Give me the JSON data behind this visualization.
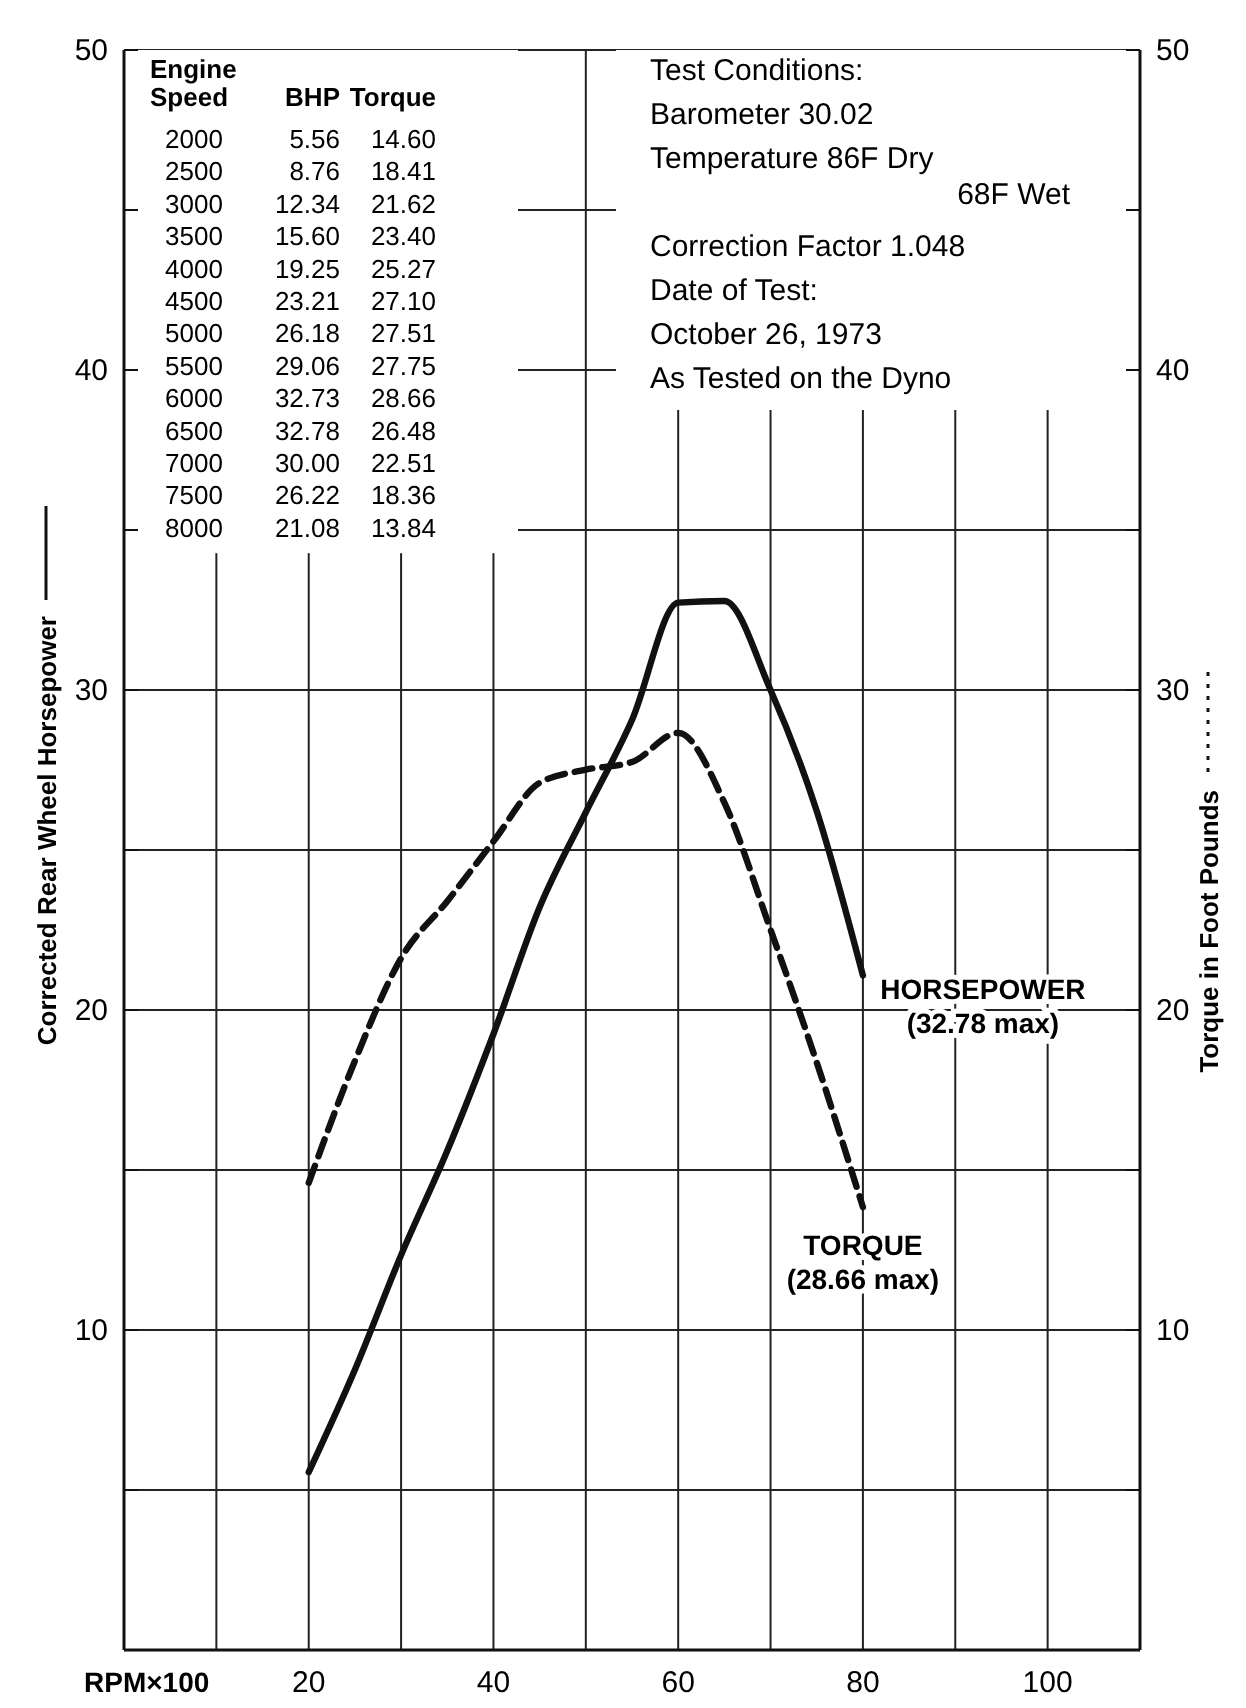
{
  "chart_data": {
    "type": "line",
    "xlabel": "RPM×100",
    "ylabel": "Corrected Rear Wheel Horsepower",
    "y2label": "Torque in Foot Pounds",
    "x": [
      20,
      25,
      30,
      35,
      40,
      45,
      50,
      55,
      60,
      65,
      70,
      75,
      80
    ],
    "series": [
      {
        "name": "HORSEPOWER",
        "color": "#111111",
        "line_style": "solid",
        "values": [
          5.56,
          8.76,
          12.34,
          15.6,
          19.25,
          23.21,
          26.18,
          29.06,
          32.73,
          32.78,
          30.0,
          26.22,
          21.08
        ]
      },
      {
        "name": "TORQUE",
        "color": "#111111",
        "line_style": "dashed",
        "values": [
          14.6,
          18.41,
          21.62,
          23.4,
          25.27,
          27.1,
          27.51,
          27.75,
          28.66,
          26.48,
          22.51,
          18.36,
          13.84
        ]
      }
    ],
    "xlim": [
      0,
      110
    ],
    "xticks": [
      {
        "value": 10,
        "label": null
      },
      20,
      {
        "value": 30,
        "label": null
      },
      40,
      {
        "value": 50,
        "label": null
      },
      60,
      {
        "value": 70,
        "label": null
      },
      80,
      {
        "value": 90,
        "label": null
      },
      100
    ],
    "ylim": [
      0,
      50
    ],
    "yticks": [
      {
        "value": 5,
        "label": null
      },
      10,
      {
        "value": 15,
        "label": null
      },
      20,
      {
        "value": 25,
        "label": null
      },
      30,
      {
        "value": 35,
        "label": null
      },
      40,
      {
        "value": 45,
        "label": null
      },
      50
    ],
    "y2lim": [
      0,
      50
    ],
    "y2ticks": [
      {
        "value": 5,
        "label": null
      },
      10,
      {
        "value": 15,
        "label": null
      },
      20,
      {
        "value": 25,
        "label": null
      },
      30,
      {
        "value": 35,
        "label": null
      },
      40,
      {
        "value": 45,
        "label": null
      },
      50
    ],
    "grid": true,
    "marker": "none",
    "annotations": [
      "Engine Speed",
      "BHP",
      "Torque",
      "2000",
      "5.56",
      "14.60",
      "2500",
      "8.76",
      "18.41",
      "3000",
      "12.34",
      "21.62",
      "3500",
      "15.60",
      "23.40",
      "4000",
      "19.25",
      "25.27",
      "4500",
      "23.21",
      "27.10",
      "5000",
      "26.18",
      "27.51",
      "5500",
      "29.06",
      "27.75",
      "6000",
      "32.73",
      "28.66",
      "6500",
      "32.78",
      "26.48",
      "7000",
      "30.00",
      "22.51",
      "7500",
      "26.22",
      "18.36",
      "8000",
      "21.08",
      "13.84",
      "(32.78 max)",
      "(28.66 max)",
      "Test Conditions:",
      "Barometer 30.02",
      "Temperature 86F Dry",
      "68F Wet",
      "Correction Factor 1.048",
      "Date of Test:",
      "October 26, 1973",
      "As Tested on the Dyno"
    ]
  }
}
